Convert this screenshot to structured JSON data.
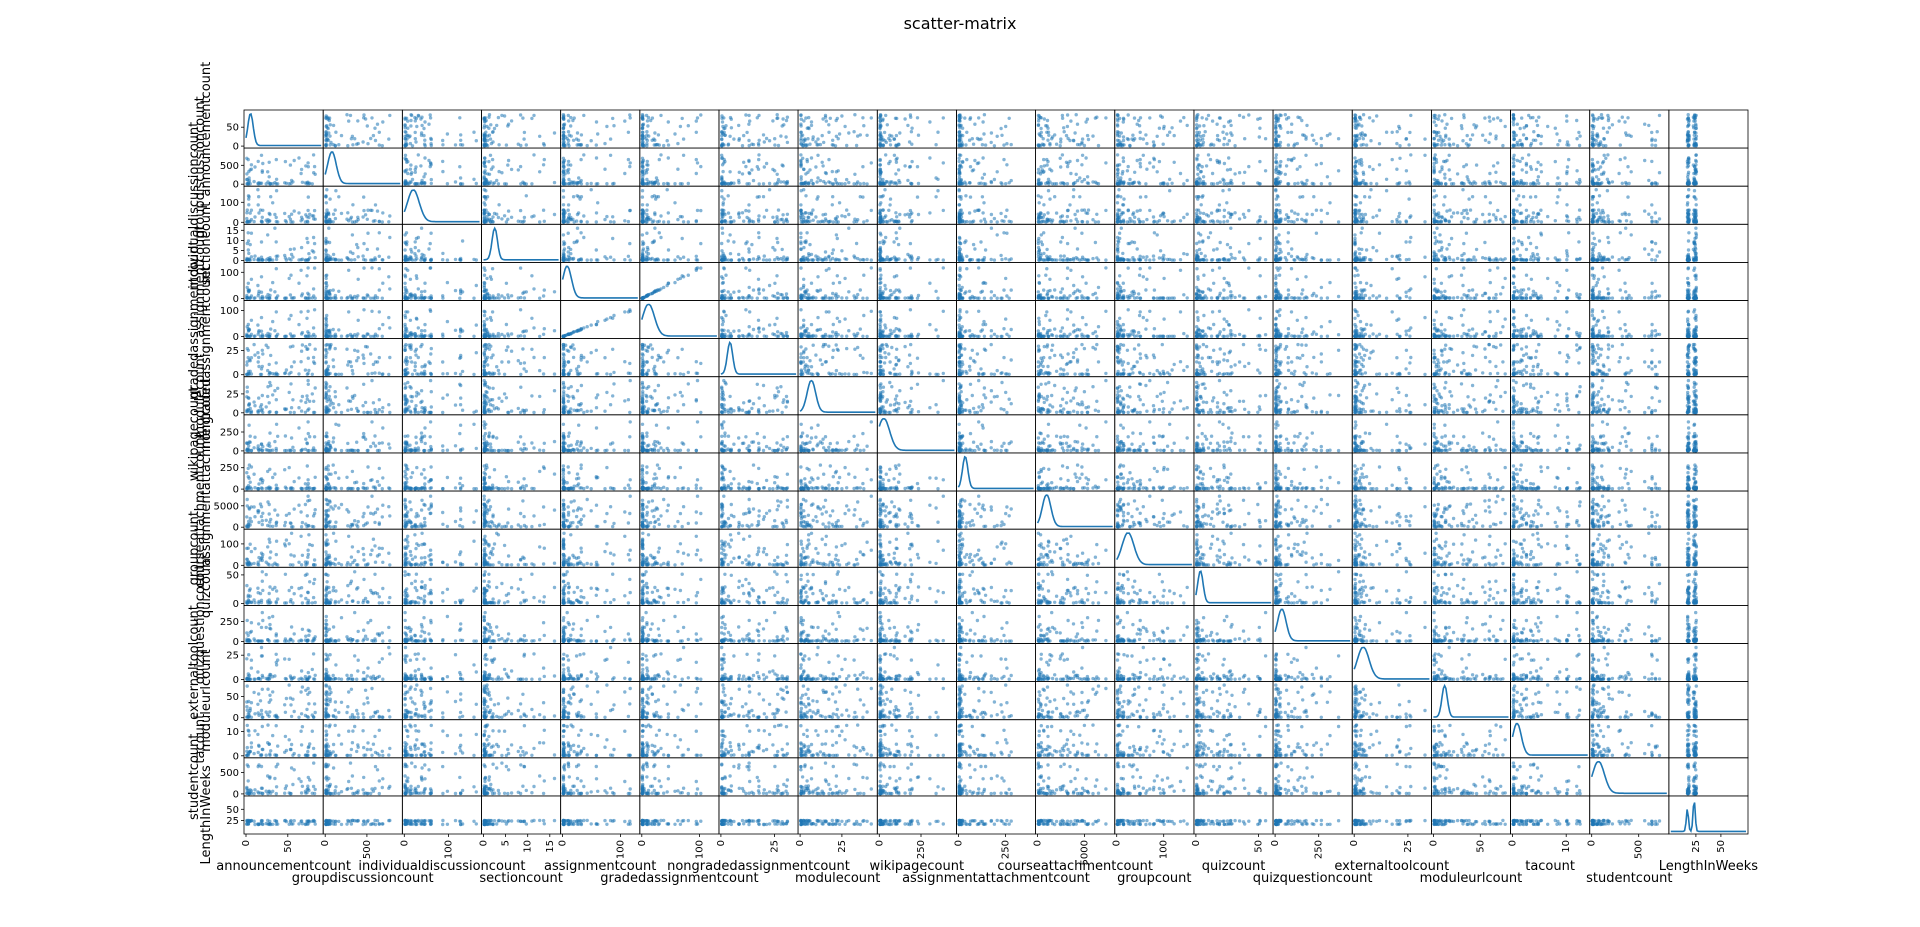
{
  "chart_data": {
    "type": "scatter",
    "title": "scatter-matrix",
    "diagonal": "kde",
    "marker_color": "#1f77b4",
    "variables": [
      {
        "name": "announcementcount",
        "range": [
          0,
          90
        ],
        "ticks": [
          0,
          50
        ]
      },
      {
        "name": "groupdiscussioncount",
        "range": [
          0,
          900
        ],
        "ticks": [
          0,
          500
        ]
      },
      {
        "name": "individualdiscussioncount",
        "range": [
          0,
          170
        ],
        "ticks": [
          0,
          100
        ]
      },
      {
        "name": "sectioncount",
        "range": [
          0,
          17
        ],
        "ticks": [
          0,
          5,
          10,
          15
        ]
      },
      {
        "name": "assignmentcount",
        "range": [
          0,
          130
        ],
        "ticks": [
          0,
          100
        ]
      },
      {
        "name": "gradedassignmentcount",
        "range": [
          0,
          130
        ],
        "ticks": [
          0,
          100
        ]
      },
      {
        "name": "nongradedassignmentcount",
        "range": [
          0,
          35
        ],
        "ticks": [
          0,
          25
        ]
      },
      {
        "name": "modulecount",
        "range": [
          0,
          45
        ],
        "ticks": [
          0,
          25
        ]
      },
      {
        "name": "wikipagecount",
        "range": [
          0,
          450
        ],
        "ticks": [
          0,
          250
        ]
      },
      {
        "name": "assignmentattachmentcount",
        "range": [
          0,
          400
        ],
        "ticks": [
          0,
          250
        ]
      },
      {
        "name": "courseattachmentcount",
        "range": [
          0,
          8000
        ],
        "ticks": [
          0,
          5000
        ]
      },
      {
        "name": "groupcount",
        "range": [
          0,
          160
        ],
        "ticks": [
          0,
          100
        ]
      },
      {
        "name": "quizcount",
        "range": [
          0,
          60
        ],
        "ticks": [
          0,
          50
        ]
      },
      {
        "name": "quizquestioncount",
        "range": [
          0,
          430
        ],
        "ticks": [
          0,
          250
        ]
      },
      {
        "name": "externaltoolcount",
        "range": [
          0,
          35
        ],
        "ticks": [
          0,
          25
        ]
      },
      {
        "name": "moduleurlcount",
        "range": [
          0,
          80
        ],
        "ticks": [
          0,
          50
        ]
      },
      {
        "name": "tacount",
        "range": [
          0,
          14
        ],
        "ticks": [
          0,
          10
        ]
      },
      {
        "name": "studentcount",
        "range": [
          0,
          800
        ],
        "ticks": [
          0,
          500
        ]
      },
      {
        "name": "LengthInWeeks",
        "range": [
          0,
          75
        ],
        "ticks": [
          25,
          50
        ]
      }
    ]
  }
}
